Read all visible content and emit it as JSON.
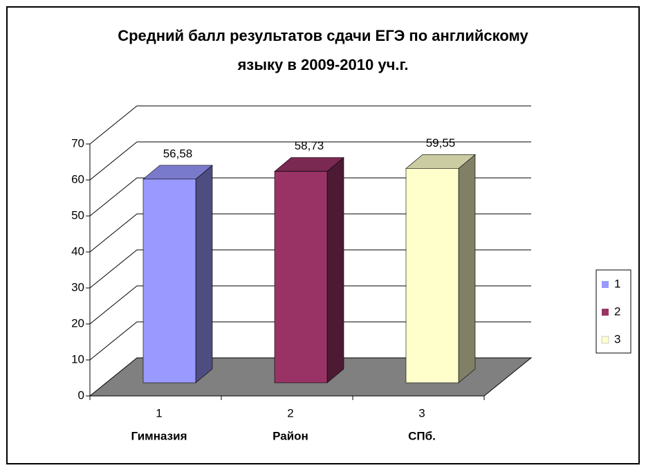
{
  "chart_data": {
    "type": "bar",
    "title": [
      "Средний балл результатов сдачи ЕГЭ по английскому",
      "языку в 2009-2010 уч.г."
    ],
    "categories": [
      "1",
      "2",
      "3"
    ],
    "category_names": [
      "Гимназия",
      "Район",
      "СПб."
    ],
    "series": [
      {
        "name": "1",
        "color": "#9999ff",
        "values": [
          56.58,
          null,
          null
        ],
        "value_labels": [
          "56,58",
          null,
          null
        ]
      },
      {
        "name": "2",
        "color": "#993366",
        "values": [
          null,
          58.73,
          null
        ],
        "value_labels": [
          null,
          "58,73",
          null
        ]
      },
      {
        "name": "3",
        "color": "#ffffcc",
        "values": [
          null,
          null,
          59.55
        ],
        "value_labels": [
          null,
          null,
          "59,55"
        ]
      }
    ],
    "ylim": [
      0,
      70
    ],
    "yticks": [
      0,
      10,
      20,
      30,
      40,
      50,
      60,
      70
    ],
    "grid": true,
    "legend": "right"
  }
}
